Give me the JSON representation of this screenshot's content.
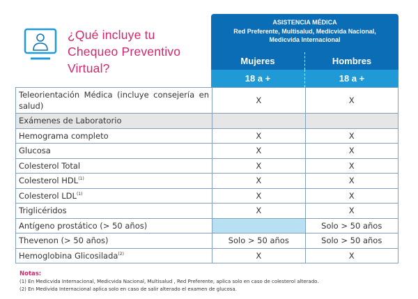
{
  "title": {
    "line1": "¿Qué incluye tu",
    "line2": "Chequeo Preventivo",
    "line3": "Virtual?"
  },
  "icon": "doctor-monitor-icon",
  "header": {
    "line1": "ASISTENCIA MÉDICA",
    "line2": "Red Preferente, Multisalud, Medicvida Nacional,",
    "line3": "Medicvida Internacional",
    "col1": "Mujeres",
    "col2": "Hombres",
    "age1": "18 a +",
    "age2": "18 a +"
  },
  "colors": {
    "pink": "#d3246f",
    "blue": "#0b6db5",
    "light_blue": "#1f9ad7"
  },
  "rows": [
    {
      "label": "Teleorientación Médica (incluye consejería en salud)",
      "sup": "",
      "m": "X",
      "h": "X"
    },
    {
      "label": "Exámenes de Laboratorio",
      "sup": "",
      "m": "",
      "h": ""
    },
    {
      "label": "Hemograma completo",
      "sup": "",
      "m": "X",
      "h": "X"
    },
    {
      "label": "Glucosa",
      "sup": "",
      "m": "X",
      "h": "X"
    },
    {
      "label": "Colesterol Total",
      "sup": "",
      "m": "X",
      "h": "X"
    },
    {
      "label": "Colesterol HDL",
      "sup": "(1)",
      "m": "X",
      "h": "X"
    },
    {
      "label": "Colesterol LDL",
      "sup": "(1)",
      "m": "X",
      "h": "X"
    },
    {
      "label": "Triglicéridos",
      "sup": "",
      "m": "X",
      "h": "X"
    },
    {
      "label": "Antígeno prostático (> 50 años)",
      "sup": "",
      "m": "",
      "h": "Solo > 50 años"
    },
    {
      "label": "Thevenon (> 50 años)",
      "sup": "",
      "m": "Solo > 50 años",
      "h": "Solo > 50 años"
    },
    {
      "label": "Hemoglobina Glicosilada",
      "sup": "(2)",
      "m": "X",
      "h": "X"
    }
  ],
  "notes": {
    "heading": "Notas:",
    "n1": "(1) En Medicvida Internacional, Medicvida Nacional, Multisalud , Red Preferente, aplica solo en caso de colesterol alterado.",
    "n2": "(2) En Medivida Internacional aplica solo en caso de salir alterado el examen de glucosa."
  }
}
